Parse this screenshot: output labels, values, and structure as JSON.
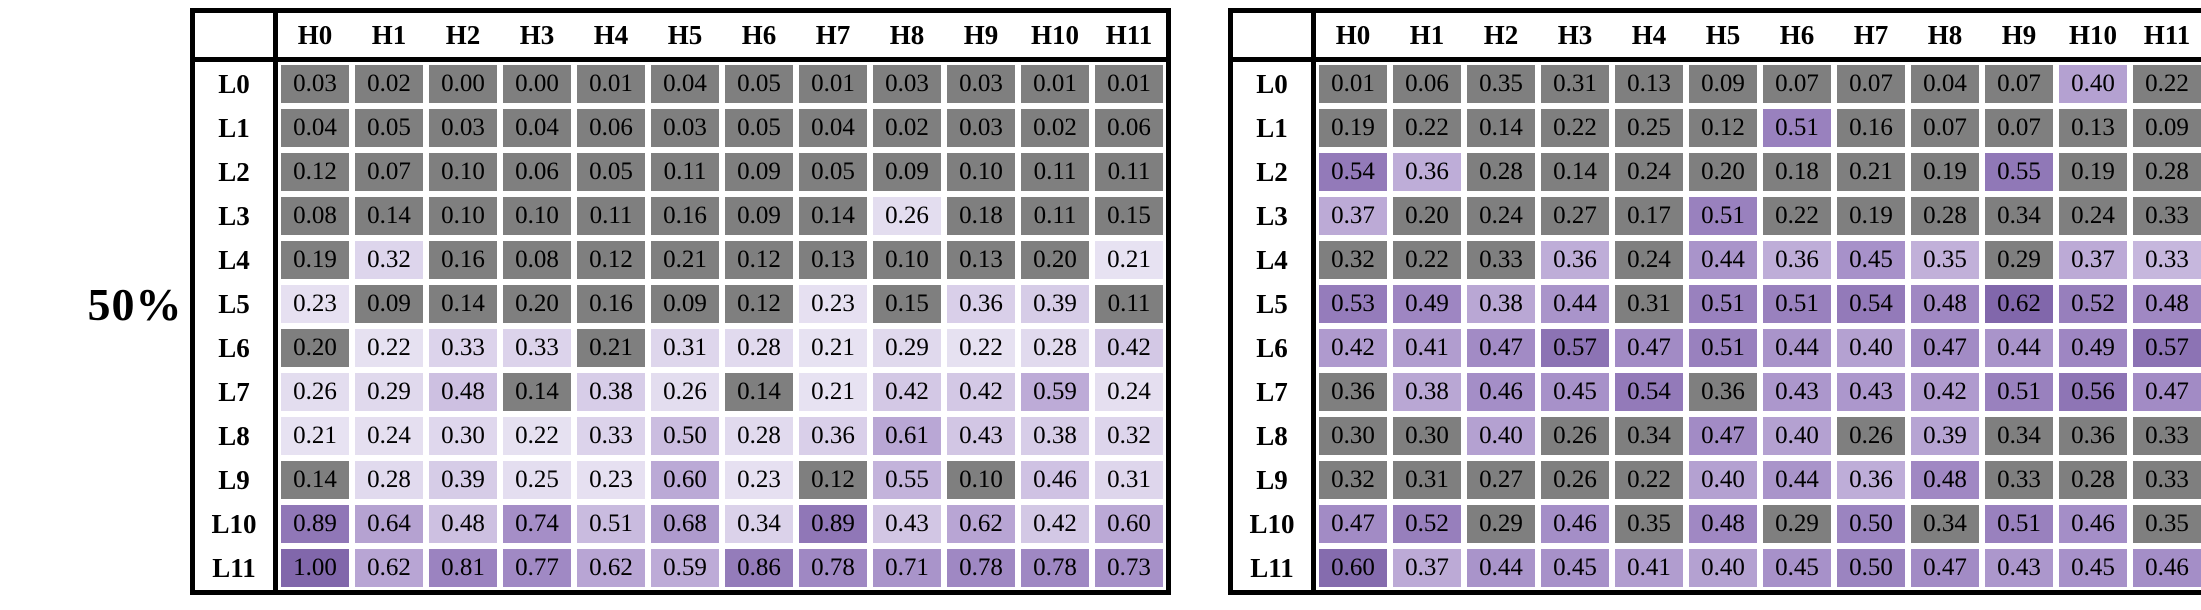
{
  "figure_label": "50%",
  "colors": {
    "background": "#ffffff",
    "border": "#000000",
    "insignificant_gray": "#7f7f7f",
    "heatmap_ramp": [
      "#f7f5fb",
      "#e4def0",
      "#cbbde0",
      "#a38cc6",
      "#8167ab"
    ]
  },
  "chart_data": [
    {
      "type": "heatmap",
      "name": "left-heatmap",
      "col_headers": [
        "H0",
        "H1",
        "H2",
        "H3",
        "H4",
        "H5",
        "H6",
        "H7",
        "H8",
        "H9",
        "H10",
        "H11"
      ],
      "row_headers": [
        "L0",
        "L1",
        "L2",
        "L3",
        "L4",
        "L5",
        "L6",
        "L7",
        "L8",
        "L9",
        "L10",
        "L11"
      ],
      "color_scale_max": 1.0,
      "values": [
        [
          0.03,
          0.02,
          0.0,
          0.0,
          0.01,
          0.04,
          0.05,
          0.01,
          0.03,
          0.03,
          0.01,
          0.01
        ],
        [
          0.04,
          0.05,
          0.03,
          0.04,
          0.06,
          0.03,
          0.05,
          0.04,
          0.02,
          0.03,
          0.02,
          0.06
        ],
        [
          0.12,
          0.07,
          0.1,
          0.06,
          0.05,
          0.11,
          0.09,
          0.05,
          0.09,
          0.1,
          0.11,
          0.11
        ],
        [
          0.08,
          0.14,
          0.1,
          0.1,
          0.11,
          0.16,
          0.09,
          0.14,
          0.26,
          0.18,
          0.11,
          0.15
        ],
        [
          0.19,
          0.32,
          0.16,
          0.08,
          0.12,
          0.21,
          0.12,
          0.13,
          0.1,
          0.13,
          0.2,
          0.21
        ],
        [
          0.23,
          0.09,
          0.14,
          0.2,
          0.16,
          0.09,
          0.12,
          0.23,
          0.15,
          0.36,
          0.39,
          0.11
        ],
        [
          0.2,
          0.22,
          0.33,
          0.33,
          0.21,
          0.31,
          0.28,
          0.21,
          0.29,
          0.22,
          0.28,
          0.42
        ],
        [
          0.26,
          0.29,
          0.48,
          0.14,
          0.38,
          0.26,
          0.14,
          0.21,
          0.42,
          0.42,
          0.59,
          0.24
        ],
        [
          0.21,
          0.24,
          0.3,
          0.22,
          0.33,
          0.5,
          0.28,
          0.36,
          0.61,
          0.43,
          0.38,
          0.32
        ],
        [
          0.14,
          0.28,
          0.39,
          0.25,
          0.23,
          0.6,
          0.23,
          0.12,
          0.55,
          0.1,
          0.46,
          0.31
        ],
        [
          0.89,
          0.64,
          0.48,
          0.74,
          0.51,
          0.68,
          0.34,
          0.89,
          0.43,
          0.62,
          0.42,
          0.6
        ],
        [
          1.0,
          0.62,
          0.81,
          0.77,
          0.62,
          0.59,
          0.86,
          0.78,
          0.71,
          0.78,
          0.78,
          0.73
        ]
      ],
      "gray_cols_by_row": [
        [
          0,
          1,
          2,
          3,
          4,
          5,
          6,
          7,
          8,
          9,
          10,
          11
        ],
        [
          0,
          1,
          2,
          3,
          4,
          5,
          6,
          7,
          8,
          9,
          10,
          11
        ],
        [
          0,
          1,
          2,
          3,
          4,
          5,
          6,
          7,
          8,
          9,
          10,
          11
        ],
        [
          0,
          1,
          2,
          3,
          4,
          5,
          6,
          7,
          9,
          10,
          11
        ],
        [
          0,
          2,
          3,
          4,
          5,
          6,
          7,
          8,
          9,
          10
        ],
        [
          1,
          2,
          3,
          4,
          5,
          6,
          8,
          11
        ],
        [
          0,
          4
        ],
        [
          3,
          6
        ],
        [],
        [
          0,
          7,
          9
        ],
        [],
        []
      ]
    },
    {
      "type": "heatmap",
      "name": "right-heatmap",
      "col_headers": [
        "H0",
        "H1",
        "H2",
        "H3",
        "H4",
        "H5",
        "H6",
        "H7",
        "H8",
        "H9",
        "H10",
        "H11"
      ],
      "row_headers": [
        "L0",
        "L1",
        "L2",
        "L3",
        "L4",
        "L5",
        "L6",
        "L7",
        "L8",
        "L9",
        "L10",
        "L11"
      ],
      "color_scale_max": 0.62,
      "values": [
        [
          0.01,
          0.06,
          0.35,
          0.31,
          0.13,
          0.09,
          0.07,
          0.07,
          0.04,
          0.07,
          0.4,
          0.22
        ],
        [
          0.19,
          0.22,
          0.14,
          0.22,
          0.25,
          0.12,
          0.51,
          0.16,
          0.07,
          0.07,
          0.13,
          0.09
        ],
        [
          0.54,
          0.36,
          0.28,
          0.14,
          0.24,
          0.2,
          0.18,
          0.21,
          0.19,
          0.55,
          0.19,
          0.28
        ],
        [
          0.37,
          0.2,
          0.24,
          0.27,
          0.17,
          0.51,
          0.22,
          0.19,
          0.28,
          0.34,
          0.24,
          0.33
        ],
        [
          0.32,
          0.22,
          0.33,
          0.36,
          0.24,
          0.44,
          0.36,
          0.45,
          0.35,
          0.29,
          0.37,
          0.33
        ],
        [
          0.53,
          0.49,
          0.38,
          0.44,
          0.31,
          0.51,
          0.51,
          0.54,
          0.48,
          0.62,
          0.52,
          0.48
        ],
        [
          0.42,
          0.41,
          0.47,
          0.57,
          0.47,
          0.51,
          0.44,
          0.4,
          0.47,
          0.44,
          0.49,
          0.57
        ],
        [
          0.36,
          0.38,
          0.46,
          0.45,
          0.54,
          0.36,
          0.43,
          0.43,
          0.42,
          0.51,
          0.56,
          0.47
        ],
        [
          0.3,
          0.3,
          0.4,
          0.26,
          0.34,
          0.47,
          0.4,
          0.26,
          0.39,
          0.34,
          0.36,
          0.33
        ],
        [
          0.32,
          0.31,
          0.27,
          0.26,
          0.22,
          0.4,
          0.44,
          0.36,
          0.48,
          0.33,
          0.28,
          0.33
        ],
        [
          0.47,
          0.52,
          0.29,
          0.46,
          0.35,
          0.48,
          0.29,
          0.5,
          0.34,
          0.51,
          0.46,
          0.35
        ],
        [
          0.6,
          0.37,
          0.44,
          0.45,
          0.41,
          0.4,
          0.45,
          0.5,
          0.47,
          0.43,
          0.45,
          0.46
        ]
      ],
      "gray_cols_by_row": [
        [
          0,
          1,
          2,
          3,
          4,
          5,
          6,
          7,
          8,
          9,
          11
        ],
        [
          0,
          1,
          2,
          3,
          4,
          5,
          7,
          8,
          9,
          10,
          11
        ],
        [
          2,
          3,
          4,
          5,
          6,
          7,
          8,
          10,
          11
        ],
        [
          1,
          2,
          3,
          4,
          6,
          7,
          8,
          9,
          10,
          11
        ],
        [
          0,
          1,
          2,
          4,
          9
        ],
        [
          4
        ],
        [],
        [
          0,
          5
        ],
        [
          0,
          1,
          3,
          4,
          7,
          9,
          10,
          11
        ],
        [
          0,
          1,
          2,
          3,
          4,
          9,
          10,
          11
        ],
        [
          2,
          4,
          6,
          8,
          11
        ],
        []
      ]
    }
  ]
}
